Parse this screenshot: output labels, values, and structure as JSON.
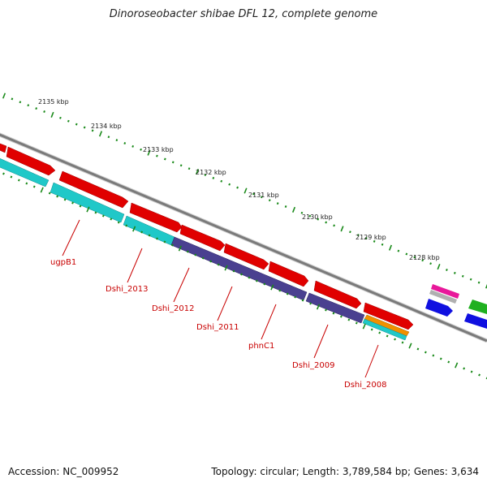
{
  "title": "Dinoroseobacter shibae DFL 12, complete genome",
  "footer": {
    "accession": "Accession: NC_009952",
    "summary": "Topology: circular; Length: 3,789,584 bp; Genes: 3,634"
  },
  "ticks": [
    "2135 kbp",
    "2134 kbp",
    "2133 kbp",
    "2132 kbp",
    "2131 kbp",
    "2130 kbp",
    "2129 kbp",
    "2128 kbp"
  ],
  "genes": [
    "ugpB1",
    "Dshi_2013",
    "Dshi_2012",
    "Dshi_2011",
    "phnC1",
    "Dshi_2009",
    "Dshi_2008"
  ],
  "colors": {
    "backbone": "#8a8a8a",
    "cds_forward": "#e00000",
    "cog_teal": "#20c8c8",
    "cog_purple": "#4a4090",
    "cog_orange": "#f09000",
    "cog_pink": "#e8189a",
    "cog_blue": "#1010e0",
    "cog_green": "#20b020",
    "ticks": "#1a8a1a",
    "gene_label": "#c80000"
  }
}
